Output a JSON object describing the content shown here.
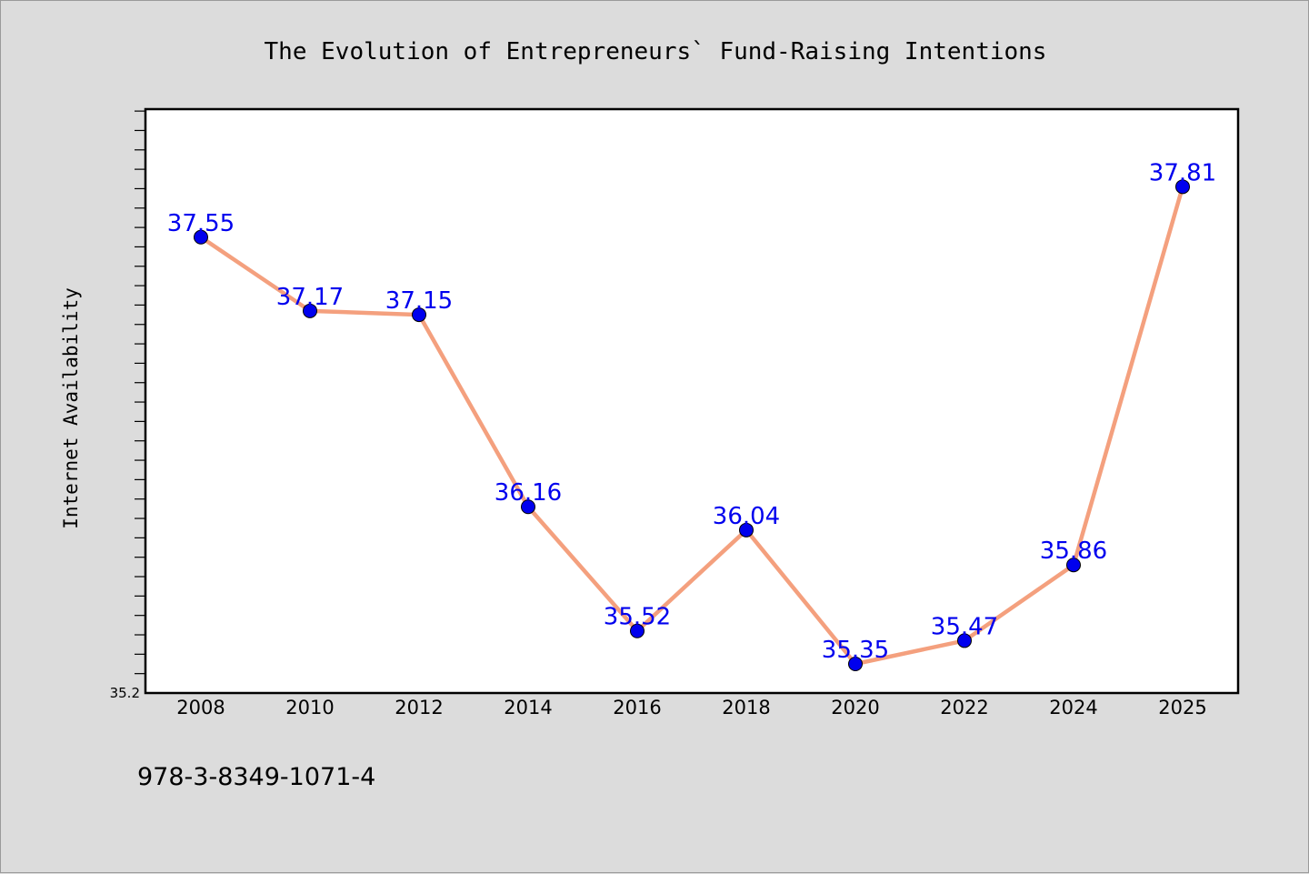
{
  "footnote": "978-3-8349-1071-4",
  "colors": {
    "background": "#dcdcdc",
    "plot_background": "#ffffff",
    "line": "#f4a07e",
    "marker": "#0000ee",
    "data_label": "#0000ee"
  },
  "chart_data": {
    "type": "line",
    "title": "The Evolution of Entrepreneurs` Fund-Raising Intentions",
    "xlabel": "",
    "ylabel": "Internet Availability",
    "categories": [
      "2008",
      "2010",
      "2012",
      "2014",
      "2016",
      "2018",
      "2020",
      "2022",
      "2024",
      "2025"
    ],
    "series": [
      {
        "values": [
          37.55,
          37.17,
          37.15,
          36.16,
          35.52,
          36.04,
          35.35,
          35.47,
          35.86,
          37.81
        ],
        "labels": [
          "37.55",
          "37.17",
          "37.15",
          "36.16",
          "35.52",
          "36.04",
          "35.35",
          "35.47",
          "35.86",
          "37.81"
        ]
      }
    ],
    "ylim": [
      35.2,
      38.21
    ],
    "yticks_labeled": [
      "35.2"
    ],
    "grid": false,
    "legend": "none",
    "marker": "circle"
  }
}
